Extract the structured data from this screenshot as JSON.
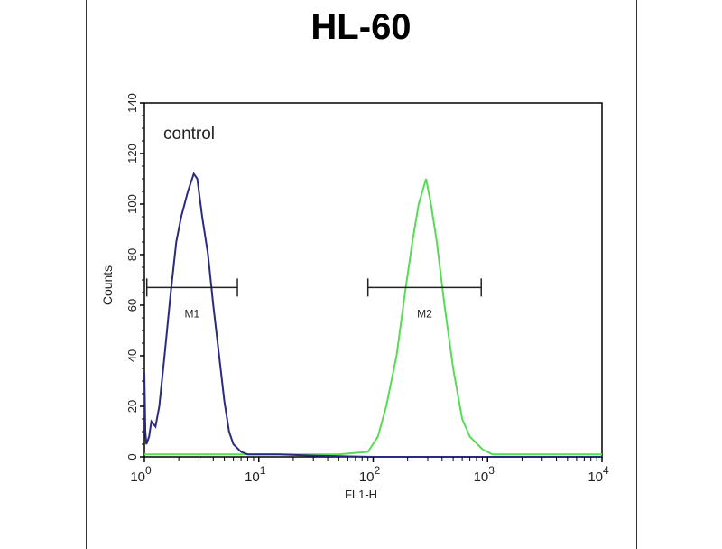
{
  "chart_data": {
    "type": "line",
    "title": "HL-60",
    "xlabel": "FL1-H",
    "ylabel": "Counts",
    "x_scale": "log",
    "xlim": [
      1,
      10000
    ],
    "ylim": [
      0,
      140
    ],
    "x_ticks": [
      {
        "base": "10",
        "exp": "0"
      },
      {
        "base": "10",
        "exp": "1"
      },
      {
        "base": "10",
        "exp": "2"
      },
      {
        "base": "10",
        "exp": "3"
      },
      {
        "base": "10",
        "exp": "4"
      }
    ],
    "y_ticks": [
      "0",
      "20",
      "40",
      "60",
      "80",
      "100",
      "120",
      "140"
    ],
    "annotation": "control",
    "grid": false,
    "markers": [
      {
        "label": "M1",
        "x_range": [
          1.05,
          6.5
        ],
        "y": 67
      },
      {
        "label": "M2",
        "x_range": [
          90,
          880
        ],
        "y": 67
      }
    ],
    "series": [
      {
        "color": "#2a2a80",
        "x": [
          1.0,
          1.02,
          1.04,
          1.1,
          1.15,
          1.25,
          1.35,
          1.5,
          1.7,
          1.9,
          2.1,
          2.4,
          2.7,
          2.9,
          3.2,
          3.6,
          4.0,
          4.5,
          5.0,
          5.5,
          6.0,
          7.0,
          8.0,
          15,
          30,
          100,
          500,
          1000,
          10000
        ],
        "y": [
          33,
          10,
          5,
          8,
          14,
          12,
          20,
          40,
          65,
          85,
          95,
          105,
          112,
          110,
          95,
          80,
          60,
          40,
          22,
          10,
          5,
          2,
          1,
          1,
          0.5,
          0,
          0,
          0,
          0
        ]
      },
      {
        "color": "#55dd55",
        "x": [
          1,
          10,
          50,
          90,
          110,
          130,
          160,
          190,
          220,
          250,
          290,
          320,
          360,
          420,
          500,
          600,
          700,
          900,
          1100,
          10000
        ],
        "y": [
          1,
          1,
          1,
          2,
          8,
          20,
          40,
          65,
          85,
          100,
          110,
          100,
          85,
          60,
          35,
          15,
          8,
          3,
          1,
          1
        ]
      }
    ]
  }
}
